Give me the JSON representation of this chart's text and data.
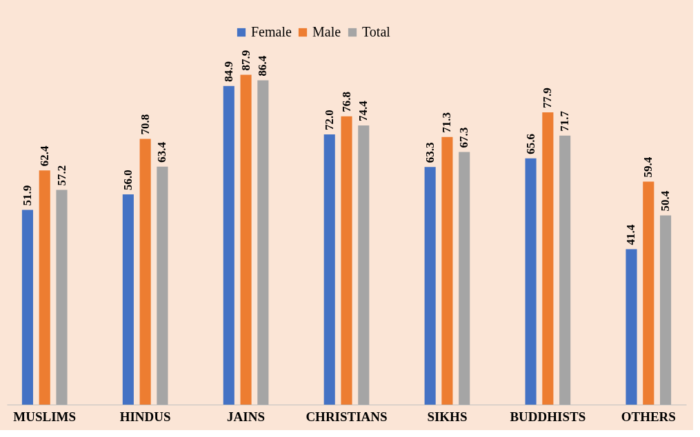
{
  "chart_data": {
    "type": "bar",
    "categories": [
      "MUSLIMS",
      "HINDUS",
      "JAINS",
      "CHRISTIANS",
      "SIKHS",
      "BUDDHISTS",
      "OTHERS"
    ],
    "series": [
      {
        "name": "Female",
        "color": "#4472c4",
        "values": [
          51.9,
          56.0,
          84.9,
          72.0,
          63.3,
          65.6,
          41.4
        ],
        "value_labels": [
          "51.9",
          "56.0",
          "84.9",
          "72.0",
          "63.3",
          "65.6",
          "41.4"
        ]
      },
      {
        "name": "Male",
        "color": "#ed7d31",
        "values": [
          62.4,
          70.8,
          87.9,
          76.8,
          71.3,
          77.9,
          59.4
        ],
        "value_labels": [
          "62.4",
          "70.8",
          "87.9",
          "76.8",
          "71.3",
          "77.9",
          "59.4"
        ]
      },
      {
        "name": "Total",
        "color": "#a5a5a5",
        "values": [
          57.2,
          63.4,
          86.4,
          74.4,
          67.3,
          71.7,
          50.4
        ],
        "value_labels": [
          "57.2",
          "63.4",
          "86.4",
          "74.4",
          "67.3",
          "71.7",
          "50.4"
        ]
      }
    ],
    "tick_labels": "x",
    "legend": "top",
    "grid": false
  }
}
